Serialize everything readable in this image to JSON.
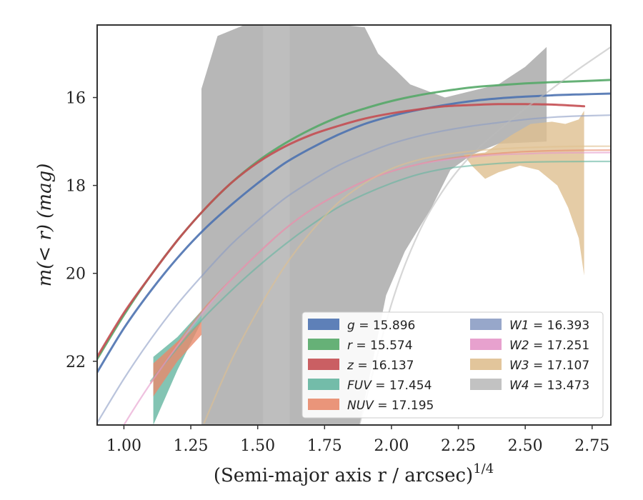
{
  "chart_data": {
    "type": "line",
    "xlabel": "(Semi-major axis r / arcsec)",
    "xlabel_superscript": "1/4",
    "ylabel": "m(< r) (mag)",
    "xlim": [
      0.9,
      2.82
    ],
    "ylim": [
      23.45,
      14.35
    ],
    "y_inverted": true,
    "grid": false,
    "legend_position": "lower-right",
    "x_ticks": [
      "1.00",
      "1.25",
      "1.50",
      "1.75",
      "2.00",
      "2.25",
      "2.50",
      "2.75"
    ],
    "y_ticks": [
      "16",
      "18",
      "20",
      "22"
    ],
    "series": [
      {
        "name": "g",
        "legend_label": "g = 15.896",
        "color": "#4c72b0",
        "x": [
          0.9,
          1.0,
          1.1,
          1.2,
          1.3,
          1.4,
          1.5,
          1.6,
          1.7,
          1.8,
          1.9,
          2.0,
          2.1,
          2.2,
          2.3,
          2.4,
          2.5,
          2.6,
          2.7,
          2.82
        ],
        "y": [
          22.25,
          21.25,
          20.4,
          19.65,
          19.0,
          18.45,
          17.95,
          17.5,
          17.15,
          16.85,
          16.6,
          16.42,
          16.28,
          16.17,
          16.08,
          16.02,
          15.98,
          15.95,
          15.93,
          15.91
        ]
      },
      {
        "name": "r",
        "legend_label": "r = 15.574",
        "color": "#55a868",
        "x": [
          0.9,
          1.0,
          1.1,
          1.2,
          1.3,
          1.4,
          1.5,
          1.6,
          1.7,
          1.8,
          1.9,
          2.0,
          2.1,
          2.2,
          2.3,
          2.4,
          2.5,
          2.6,
          2.7,
          2.82
        ],
        "y": [
          21.95,
          20.95,
          20.05,
          19.25,
          18.55,
          17.95,
          17.45,
          17.05,
          16.72,
          16.45,
          16.25,
          16.08,
          15.95,
          15.85,
          15.77,
          15.72,
          15.68,
          15.65,
          15.63,
          15.6
        ]
      },
      {
        "name": "z",
        "legend_label": "z = 16.137",
        "color": "#c44e52",
        "x": [
          0.9,
          1.0,
          1.1,
          1.2,
          1.3,
          1.4,
          1.5,
          1.6,
          1.7,
          1.8,
          1.9,
          2.0,
          2.1,
          2.2,
          2.3,
          2.4,
          2.5,
          2.6,
          2.72
        ],
        "y": [
          21.9,
          20.9,
          20.05,
          19.25,
          18.55,
          17.95,
          17.48,
          17.12,
          16.85,
          16.65,
          16.48,
          16.36,
          16.27,
          16.2,
          16.17,
          16.15,
          16.15,
          16.16,
          16.2
        ]
      },
      {
        "name": "FUV",
        "legend_label": "FUV = 17.454",
        "color": "#64b5a0",
        "x": [
          1.1,
          1.2,
          1.3,
          1.4,
          1.5,
          1.6,
          1.7,
          1.8,
          1.9,
          2.0,
          2.1,
          2.2,
          2.3,
          2.4,
          2.5,
          2.6,
          2.7,
          2.82
        ],
        "y": [
          22.45,
          21.7,
          21.0,
          20.4,
          19.85,
          19.35,
          18.9,
          18.5,
          18.2,
          17.95,
          17.75,
          17.62,
          17.55,
          17.5,
          17.47,
          17.46,
          17.455,
          17.454
        ]
      },
      {
        "name": "NUV",
        "legend_label": "NUV = 17.195",
        "color": "#e8896b",
        "x": [
          1.1,
          1.2,
          1.3,
          1.4,
          1.5,
          1.6,
          1.7,
          1.8,
          1.9,
          2.0,
          2.1,
          2.2,
          2.3,
          2.4,
          2.5,
          2.6,
          2.7,
          2.82
        ],
        "y": [
          22.5,
          21.6,
          20.8,
          20.15,
          19.55,
          19.0,
          18.55,
          18.2,
          17.9,
          17.68,
          17.52,
          17.4,
          17.32,
          17.27,
          17.23,
          17.21,
          17.2,
          17.195
        ]
      },
      {
        "name": "W1",
        "legend_label": "W1 = 16.393",
        "color": "#8c9dc4",
        "x": [
          0.9,
          1.0,
          1.1,
          1.2,
          1.3,
          1.4,
          1.5,
          1.6,
          1.7,
          1.8,
          1.9,
          2.0,
          2.1,
          2.2,
          2.3,
          2.4,
          2.5,
          2.6,
          2.7,
          2.82
        ],
        "y": [
          23.4,
          22.4,
          21.5,
          20.7,
          20.0,
          19.35,
          18.8,
          18.3,
          17.9,
          17.55,
          17.28,
          17.05,
          16.88,
          16.75,
          16.65,
          16.57,
          16.5,
          16.45,
          16.42,
          16.4
        ]
      },
      {
        "name": "W2",
        "legend_label": "W2 = 17.251",
        "color": "#e497c9",
        "x": [
          0.9,
          1.0,
          1.1,
          1.2,
          1.3,
          1.4,
          1.5,
          1.6,
          1.7,
          1.8,
          1.9,
          2.0,
          2.1,
          2.2,
          2.3,
          2.4,
          2.5,
          2.6,
          2.7,
          2.82
        ],
        "y": [
          24.5,
          23.45,
          22.5,
          21.65,
          20.85,
          20.15,
          19.55,
          19.0,
          18.55,
          18.2,
          17.9,
          17.68,
          17.52,
          17.42,
          17.35,
          17.3,
          17.28,
          17.26,
          17.255,
          17.251
        ]
      },
      {
        "name": "W3",
        "legend_label": "W3 = 17.107",
        "color": "#dfbf90",
        "x": [
          1.3,
          1.4,
          1.5,
          1.6,
          1.7,
          1.8,
          1.9,
          2.0,
          2.1,
          2.2,
          2.3,
          2.4,
          2.5,
          2.6,
          2.7,
          2.82
        ],
        "y": [
          23.4,
          22.0,
          20.85,
          19.85,
          19.05,
          18.4,
          17.95,
          17.62,
          17.42,
          17.3,
          17.22,
          17.17,
          17.14,
          17.12,
          17.11,
          17.107
        ]
      },
      {
        "name": "W4",
        "legend_label": "W4 = 13.473",
        "color": "#bbbbbb",
        "x": [
          1.88,
          2.0,
          2.1,
          2.2,
          2.3,
          2.4,
          2.5,
          2.6,
          2.7,
          2.82
        ],
        "y": [
          23.45,
          20.7,
          19.1,
          18.05,
          17.3,
          16.75,
          16.25,
          15.8,
          15.35,
          14.85
        ]
      }
    ],
    "bands": [
      {
        "name": "W4",
        "color": "#aaaaaa",
        "upper": [
          [
            1.29,
            15.8
          ],
          [
            1.35,
            14.6
          ],
          [
            1.45,
            14.35
          ],
          [
            1.82,
            14.35
          ],
          [
            1.9,
            14.4
          ],
          [
            1.95,
            15.0
          ],
          [
            2.02,
            15.4
          ],
          [
            2.07,
            15.7
          ],
          [
            2.2,
            16.0
          ],
          [
            2.4,
            15.7
          ],
          [
            2.5,
            15.3
          ],
          [
            2.58,
            14.85
          ]
        ],
        "lower": [
          [
            2.58,
            17.0
          ],
          [
            2.4,
            17.05
          ],
          [
            2.3,
            17.3
          ],
          [
            2.22,
            17.65
          ],
          [
            2.15,
            18.5
          ],
          [
            2.05,
            19.5
          ],
          [
            1.98,
            20.5
          ],
          [
            1.93,
            22.0
          ],
          [
            1.88,
            23.45
          ],
          [
            1.29,
            23.45
          ]
        ]
      },
      {
        "name": "W4-overlap",
        "color": "#bfbfbf",
        "upper": [
          [
            1.52,
            14.35
          ],
          [
            1.62,
            14.35
          ]
        ],
        "lower": [
          [
            1.62,
            23.45
          ],
          [
            1.52,
            23.45
          ]
        ]
      },
      {
        "name": "W3",
        "color": "#dfbf90",
        "upper": [
          [
            2.27,
            17.3
          ],
          [
            2.35,
            17.25
          ],
          [
            2.4,
            17.05
          ],
          [
            2.45,
            16.85
          ],
          [
            2.52,
            16.6
          ],
          [
            2.6,
            16.55
          ],
          [
            2.65,
            16.6
          ],
          [
            2.7,
            16.5
          ],
          [
            2.72,
            16.3
          ]
        ],
        "lower": [
          [
            2.72,
            20.05
          ],
          [
            2.7,
            19.2
          ],
          [
            2.66,
            18.5
          ],
          [
            2.62,
            18.0
          ],
          [
            2.55,
            17.65
          ],
          [
            2.48,
            17.55
          ],
          [
            2.4,
            17.7
          ],
          [
            2.35,
            17.85
          ],
          [
            2.3,
            17.55
          ],
          [
            2.27,
            17.3
          ]
        ]
      },
      {
        "name": "FUV",
        "color": "#64b5a0",
        "upper": [
          [
            1.11,
            21.9
          ],
          [
            1.2,
            21.45
          ],
          [
            1.29,
            20.85
          ]
        ],
        "lower": [
          [
            1.29,
            21.1
          ],
          [
            1.2,
            22.2
          ],
          [
            1.11,
            23.45
          ]
        ]
      },
      {
        "name": "NUV",
        "color": "#e8896b",
        "upper": [
          [
            1.11,
            22.05
          ],
          [
            1.2,
            21.55
          ],
          [
            1.29,
            21.1
          ]
        ],
        "lower": [
          [
            1.29,
            21.4
          ],
          [
            1.2,
            22.0
          ],
          [
            1.11,
            22.8
          ]
        ]
      }
    ],
    "legend": {
      "columns": [
        [
          {
            "prefix": "g",
            "suffix": " = 15.896",
            "color": "#4c72b0"
          },
          {
            "prefix": "r",
            "suffix": " = 15.574",
            "color": "#55a868"
          },
          {
            "prefix": "z",
            "suffix": " = 16.137",
            "color": "#c44e52"
          },
          {
            "prefix": "FUV",
            "suffix": " = 17.454",
            "color": "#64b5a0"
          },
          {
            "prefix": "NUV",
            "suffix": " = 17.195",
            "color": "#e8896b"
          }
        ],
        [
          {
            "prefix": "W1",
            "suffix": " = 16.393",
            "color": "#8c9dc4"
          },
          {
            "prefix": "W2",
            "suffix": " = 17.251",
            "color": "#e497c9"
          },
          {
            "prefix": "W3",
            "suffix": " = 17.107",
            "color": "#dfbf90"
          },
          {
            "prefix": "W4",
            "suffix": " = 13.473",
            "color": "#bbbbbb"
          }
        ]
      ]
    }
  }
}
